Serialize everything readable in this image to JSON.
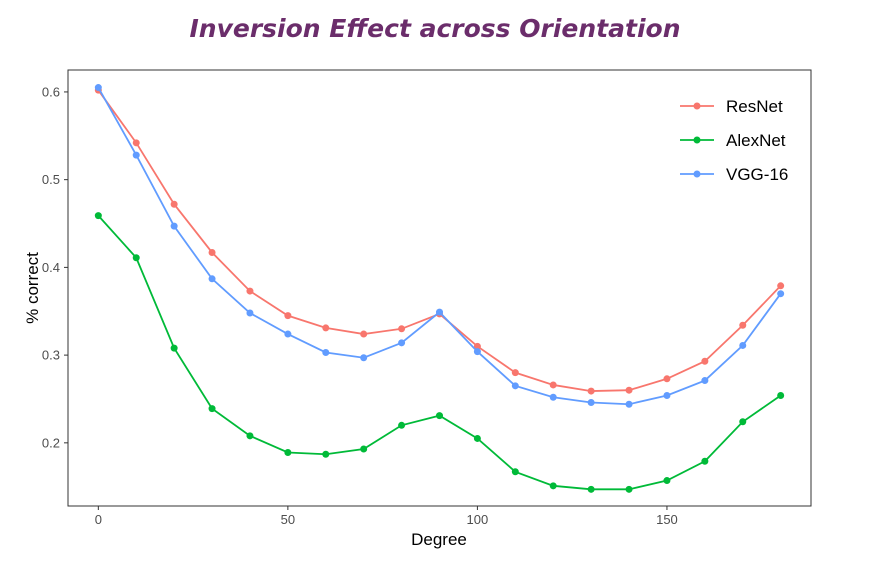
{
  "chart_data": {
    "type": "line",
    "title": "Inversion Effect across Orientation",
    "xlabel": "Degree",
    "ylabel": "% correct",
    "xlim": [
      -8,
      188
    ],
    "ylim": [
      0.128,
      0.625
    ],
    "xticks": [
      0,
      50,
      100,
      150
    ],
    "yticks": [
      0.2,
      0.3,
      0.4,
      0.5,
      0.6
    ],
    "xticklabels": [
      "0",
      "50",
      "100",
      "150"
    ],
    "yticklabels": [
      "0.2",
      "0.3",
      "0.4",
      "0.5",
      "0.6"
    ],
    "grid": false,
    "legend_position": "top-right",
    "x": [
      0,
      10,
      20,
      30,
      40,
      50,
      60,
      70,
      80,
      90,
      100,
      110,
      120,
      130,
      140,
      150,
      160,
      170,
      180
    ],
    "series": [
      {
        "name": "ResNet",
        "color": "#f8766d",
        "values": [
          0.602,
          0.542,
          0.472,
          0.417,
          0.373,
          0.345,
          0.331,
          0.324,
          0.33,
          0.347,
          0.31,
          0.28,
          0.266,
          0.259,
          0.26,
          0.273,
          0.293,
          0.334,
          0.379
        ]
      },
      {
        "name": "AlexNet",
        "color": "#00ba38",
        "values": [
          0.459,
          0.411,
          0.308,
          0.239,
          0.208,
          0.189,
          0.187,
          0.193,
          0.22,
          0.231,
          0.205,
          0.167,
          0.151,
          0.147,
          0.147,
          0.157,
          0.179,
          0.224,
          0.254
        ]
      },
      {
        "name": "VGG-16",
        "color": "#619cff",
        "values": [
          0.605,
          0.528,
          0.447,
          0.387,
          0.348,
          0.324,
          0.303,
          0.297,
          0.314,
          0.349,
          0.304,
          0.265,
          0.252,
          0.246,
          0.244,
          0.254,
          0.271,
          0.311,
          0.37
        ]
      }
    ]
  }
}
